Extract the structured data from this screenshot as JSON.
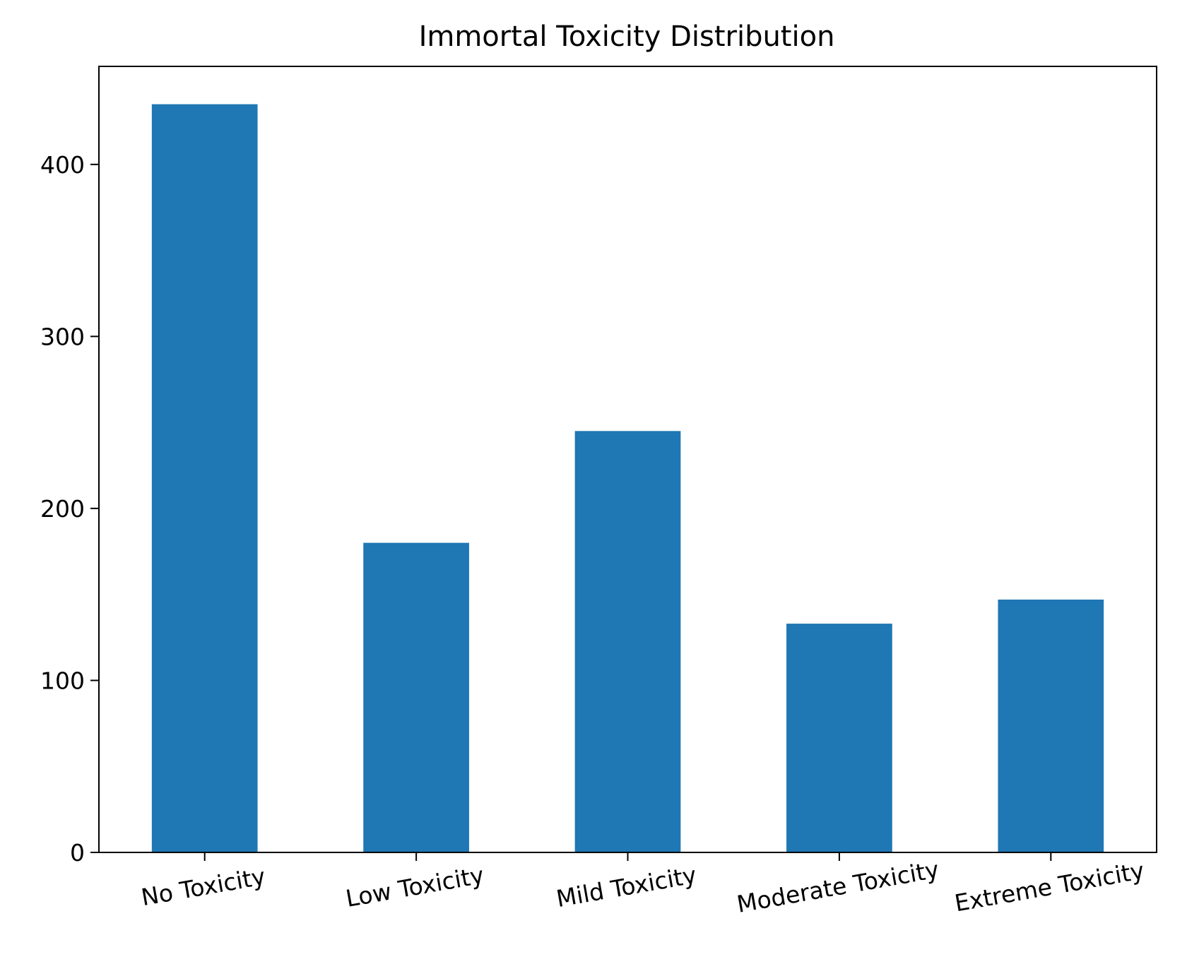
{
  "chart_data": {
    "type": "bar",
    "title": "Immortal Toxicity Distribution",
    "xlabel": "",
    "ylabel": "",
    "categories": [
      "No Toxicity",
      "Low Toxicity",
      "Mild Toxicity",
      "Moderate Toxicity",
      "Extreme Toxicity"
    ],
    "values": [
      435,
      180,
      245,
      133,
      147
    ],
    "ylim": [
      0,
      457
    ],
    "yticks": [
      0,
      100,
      200,
      300,
      400
    ],
    "grid": false,
    "legend": "none",
    "x_tick_rotation_deg": -10,
    "colors": {
      "bar": "#1f77b4",
      "axes": "#000000",
      "background": "#ffffff"
    }
  }
}
